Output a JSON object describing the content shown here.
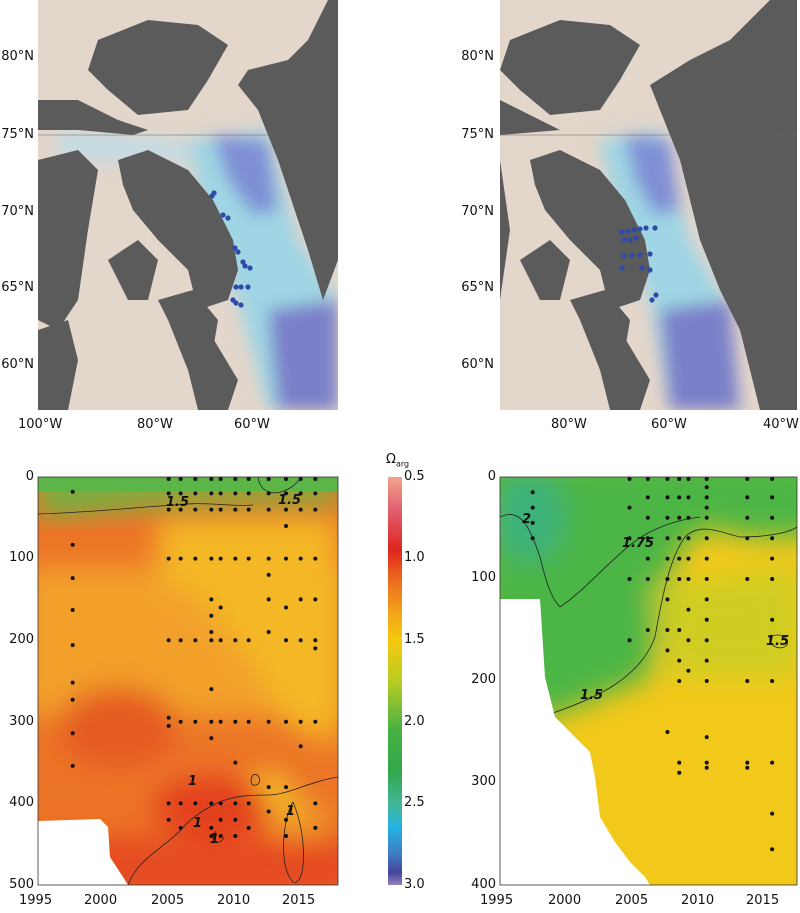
{
  "maps": [
    {
      "lat_labels": [
        "80°N",
        "75°N",
        "70°N",
        "65°N",
        "60°N"
      ],
      "lon_labels": [
        "100°W",
        "80°W",
        "60°W"
      ]
    },
    {
      "lat_labels": [
        "80°N",
        "75°N",
        "70°N",
        "65°N",
        "60°N"
      ],
      "lon_labels": [
        "80°W",
        "60°W",
        "40°W"
      ]
    }
  ],
  "colorbar": {
    "title": "Ω",
    "subscript": "arg",
    "ticks": [
      "0.5",
      "1.0",
      "1.5",
      "2.0",
      "2.5",
      "3.0"
    ],
    "range": [
      0.5,
      3.0
    ]
  },
  "chart_data": [
    {
      "type": "heatmap",
      "title": "",
      "xlabel": "",
      "ylabel": "",
      "xlim": [
        1995,
        2017.5
      ],
      "ylim": [
        500,
        0
      ],
      "x_ticks": [
        "1995",
        "2000",
        "2005",
        "2010",
        "2015"
      ],
      "y_ticks": [
        "0",
        "100",
        "200",
        "300",
        "400",
        "500"
      ],
      "contour_labels": [
        "1.5",
        "1.5",
        "1",
        "1",
        "1",
        "1"
      ],
      "stations": [
        {
          "year": 1997.6,
          "depths": [
            18,
            83,
            124,
            163,
            206,
            252,
            273,
            314,
            354
          ]
        },
        {
          "year": 2004.8,
          "depths": [
            0,
            20,
            40,
            100,
            200,
            295,
            305,
            400,
            420
          ]
        },
        {
          "year": 2005.7,
          "depths": [
            0,
            20,
            40,
            100,
            200,
            300,
            400,
            430
          ]
        },
        {
          "year": 2006.8,
          "depths": [
            0,
            20,
            40,
            100,
            200,
            300,
            400
          ]
        },
        {
          "year": 2008.0,
          "depths": [
            0,
            20,
            40,
            100,
            150,
            170,
            190,
            200,
            260,
            300,
            320,
            400,
            430,
            440
          ]
        },
        {
          "year": 2008.7,
          "depths": [
            0,
            20,
            40,
            100,
            160,
            200,
            300,
            400,
            420,
            440
          ]
        },
        {
          "year": 2009.8,
          "depths": [
            0,
            20,
            40,
            100,
            200,
            300,
            350,
            400,
            420,
            440
          ]
        },
        {
          "year": 2010.8,
          "depths": [
            0,
            20,
            40,
            100,
            200,
            300,
            400,
            430
          ]
        },
        {
          "year": 2012.3,
          "depths": [
            0,
            20,
            40,
            100,
            120,
            150,
            190,
            300,
            380,
            410
          ]
        },
        {
          "year": 2013.6,
          "depths": [
            0,
            20,
            40,
            60,
            100,
            160,
            200,
            300,
            380,
            420,
            440
          ]
        },
        {
          "year": 2014.7,
          "depths": [
            0,
            20,
            40,
            100,
            150,
            200,
            300,
            330
          ]
        },
        {
          "year": 2015.8,
          "depths": [
            0,
            20,
            40,
            100,
            150,
            200,
            210,
            300,
            400,
            430
          ]
        }
      ]
    },
    {
      "type": "heatmap",
      "title": "",
      "xlabel": "",
      "ylabel": "",
      "xlim": [
        1995,
        2017.7
      ],
      "ylim": [
        400,
        0
      ],
      "x_ticks": [
        "1995",
        "2000",
        "2005",
        "2010",
        "2015"
      ],
      "y_ticks": [
        "0",
        "100",
        "200",
        "300",
        "400"
      ],
      "contour_labels": [
        "2",
        "1.75",
        "1.5",
        "1.5"
      ],
      "stations": [
        {
          "year": 1997.5,
          "depths": [
            15,
            30,
            45,
            60
          ]
        },
        {
          "year": 2004.9,
          "depths": [
            0,
            30,
            60,
            100,
            160
          ]
        },
        {
          "year": 2006.3,
          "depths": [
            0,
            20,
            40,
            60,
            80,
            100,
            150
          ]
        },
        {
          "year": 2007.8,
          "depths": [
            0,
            20,
            40,
            60,
            80,
            100,
            120,
            150,
            170,
            250
          ]
        },
        {
          "year": 2008.7,
          "depths": [
            0,
            20,
            40,
            60,
            80,
            100,
            150,
            180,
            200,
            280,
            290
          ]
        },
        {
          "year": 2009.4,
          "depths": [
            0,
            20,
            40,
            60,
            80,
            100,
            130,
            160,
            190
          ]
        },
        {
          "year": 2010.8,
          "depths": [
            0,
            10,
            20,
            30,
            40,
            60,
            80,
            100,
            120,
            140,
            160,
            180,
            200,
            255,
            280,
            285
          ]
        },
        {
          "year": 2013.9,
          "depths": [
            0,
            20,
            40,
            60,
            100,
            200,
            280,
            285
          ]
        },
        {
          "year": 2015.8,
          "depths": [
            0,
            20,
            40,
            60,
            80,
            100,
            140,
            200,
            280,
            330,
            365
          ]
        }
      ]
    }
  ]
}
